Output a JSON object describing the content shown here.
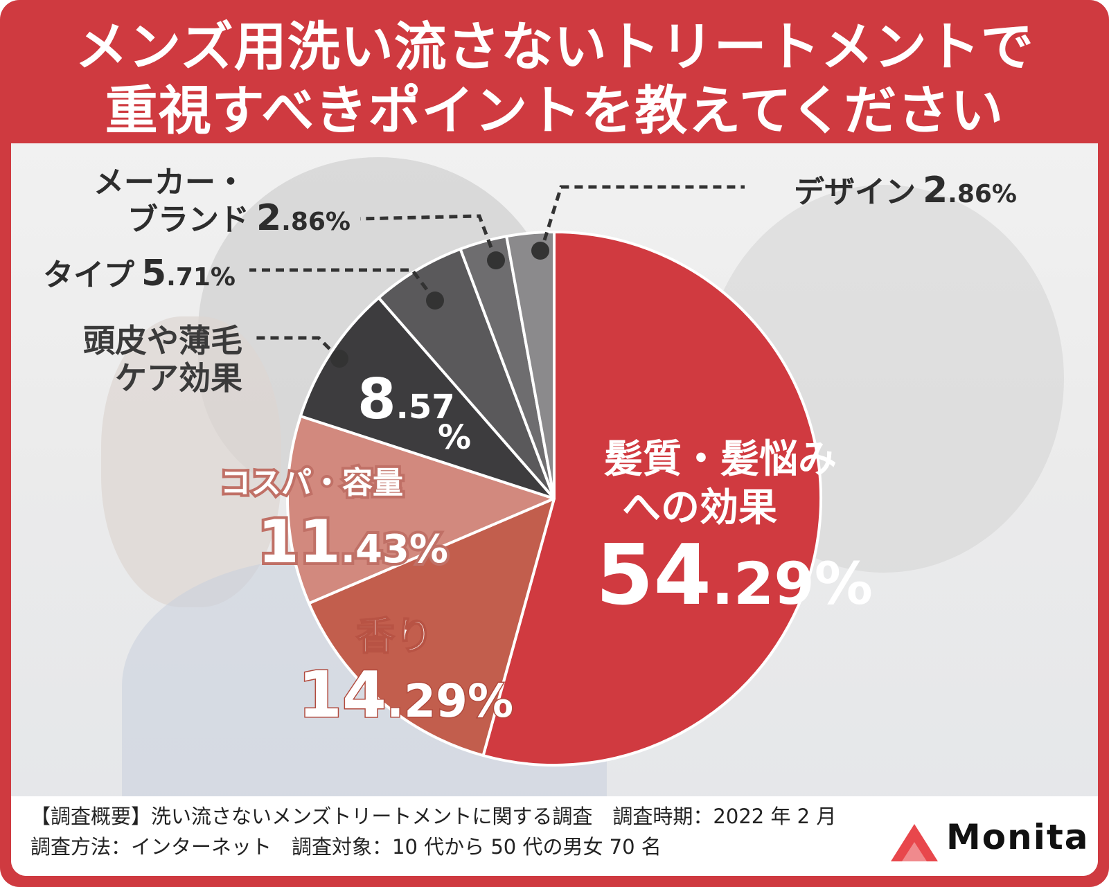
{
  "title": {
    "line1": "メンズ用洗い流さないトリートメントで",
    "line2": "重視すべきポイントを教えてください"
  },
  "chart_data": {
    "type": "pie",
    "title": "メンズ用洗い流さないトリートメントで重視すべきポイントを教えてください",
    "slices": [
      {
        "label": "髪質・髪悩みへの効果",
        "value": 54.29,
        "int": "54",
        "dec": ".29%",
        "color": "#d03a40"
      },
      {
        "label": "香り",
        "value": 14.29,
        "int": "14",
        "dec": ".29%",
        "color": "#c25e4d"
      },
      {
        "label": "コスパ・容量",
        "value": 11.43,
        "int": "11",
        "dec": ".43%",
        "color": "#d2897e"
      },
      {
        "label": "頭皮や薄毛ケア効果",
        "value": 8.57,
        "int": "8",
        "dec": ".57",
        "pct": "%",
        "color": "#3d3c3e"
      },
      {
        "label": "タイプ",
        "value": 5.71,
        "int": "5",
        "dec": ".71%",
        "color": "#5a595b"
      },
      {
        "label": "メーカー・ブランド",
        "value": 2.86,
        "int": "2",
        "dec": ".86%",
        "color": "#6e6d6f"
      },
      {
        "label": "デザイン",
        "value": 2.86,
        "int": "2",
        "dec": ".86%",
        "color": "#8b8a8c"
      }
    ],
    "labels": {
      "hair": [
        "髪質・髪悩み",
        "への効果"
      ],
      "scent": "香り",
      "cost": "コスパ・容量",
      "scalp": [
        "頭皮や薄毛",
        "ケア効果"
      ],
      "type": "タイプ",
      "maker": [
        "メーカー・",
        "ブランド"
      ],
      "design": "デザイン"
    }
  },
  "footer": {
    "line1": "【調査概要】洗い流さないメンズトリートメントに関する調査　調査時期：2022 年 2 月",
    "line2": "調査方法：インターネット　調査対象：10 代から 50 代の男女 70 名"
  },
  "logo": {
    "text": "Monita",
    "color": "#e8474c"
  }
}
